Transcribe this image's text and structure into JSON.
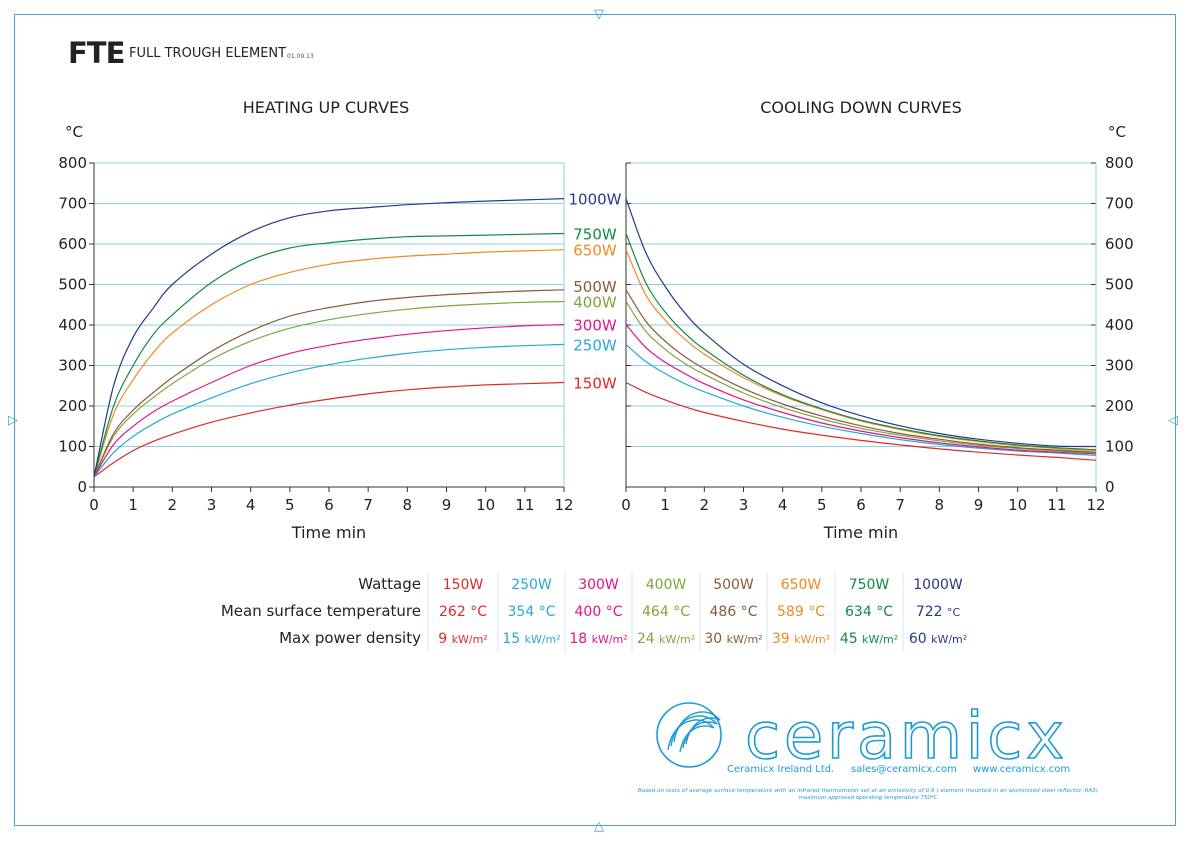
{
  "header": {
    "code": "FTE",
    "name": "FULL TROUGH ELEMENT",
    "date": "01.09.13"
  },
  "markers": {
    "top": "▽",
    "bottom": "△",
    "left": "▷",
    "right": "◁"
  },
  "colors": {
    "frame": "#4aa3d8",
    "grid": "#8fd0e6",
    "axis": "#333333"
  },
  "chart_data": [
    {
      "type": "line",
      "title": "HEATING UP CURVES",
      "xlabel": "Time min",
      "ylabel": "°C",
      "xlim": [
        0,
        12
      ],
      "ylim": [
        0,
        800
      ],
      "xticks": [
        "0",
        "1",
        "2",
        "3",
        "4",
        "5",
        "6",
        "7",
        "8",
        "9",
        "10",
        "11",
        "12"
      ],
      "yticks": [
        "0",
        "100",
        "200",
        "300",
        "400",
        "500",
        "600",
        "700",
        "800"
      ],
      "grid": true,
      "x": [
        0,
        0.5,
        1,
        1.5,
        2,
        3,
        4,
        5,
        6,
        7,
        8,
        9,
        10,
        11,
        12
      ],
      "series": [
        {
          "name": "150W",
          "color": "#e32828",
          "values": [
            25,
            60,
            90,
            112,
            130,
            160,
            183,
            202,
            217,
            230,
            240,
            247,
            252,
            255,
            258
          ]
        },
        {
          "name": "250W",
          "color": "#26a9d8",
          "values": [
            25,
            85,
            125,
            155,
            180,
            220,
            255,
            282,
            302,
            318,
            330,
            339,
            345,
            349,
            352
          ]
        },
        {
          "name": "300W",
          "color": "#e0148c",
          "values": [
            25,
            105,
            150,
            185,
            212,
            258,
            300,
            330,
            350,
            365,
            377,
            386,
            393,
            398,
            401
          ]
        },
        {
          "name": "400W",
          "color": "#7fa63a",
          "values": [
            25,
            125,
            180,
            220,
            255,
            315,
            360,
            392,
            413,
            428,
            439,
            447,
            452,
            456,
            458
          ]
        },
        {
          "name": "500W",
          "color": "#8a5a3a",
          "values": [
            25,
            132,
            190,
            232,
            270,
            335,
            385,
            422,
            443,
            458,
            468,
            475,
            480,
            484,
            487
          ]
        },
        {
          "name": "650W",
          "color": "#f08a20",
          "values": [
            25,
            180,
            265,
            330,
            380,
            450,
            500,
            530,
            550,
            562,
            570,
            575,
            580,
            583,
            586
          ]
        },
        {
          "name": "750W",
          "color": "#138a44",
          "values": [
            25,
            200,
            300,
            375,
            425,
            505,
            560,
            590,
            603,
            612,
            618,
            620,
            622,
            624,
            626
          ]
        },
        {
          "name": "1000W",
          "color": "#233a8c",
          "values": [
            25,
            250,
            370,
            440,
            500,
            575,
            630,
            665,
            682,
            690,
            697,
            702,
            706,
            709,
            712
          ]
        }
      ]
    },
    {
      "type": "line",
      "title": "COOLING DOWN CURVES",
      "xlabel": "Time min",
      "ylabel": "°C",
      "xlim": [
        0,
        12
      ],
      "ylim": [
        0,
        800
      ],
      "xticks": [
        "0",
        "1",
        "2",
        "3",
        "4",
        "5",
        "6",
        "7",
        "8",
        "9",
        "10",
        "11",
        "12"
      ],
      "yticks": [
        "0",
        "100",
        "200",
        "300",
        "400",
        "500",
        "600",
        "700",
        "800"
      ],
      "grid": true,
      "x": [
        0,
        0.5,
        1,
        1.5,
        2,
        3,
        4,
        5,
        6,
        7,
        8,
        9,
        10,
        11,
        12
      ],
      "series": [
        {
          "name": "150W",
          "color": "#e32828",
          "values": [
            258,
            234,
            215,
            198,
            184,
            162,
            143,
            128,
            115,
            104,
            94,
            86,
            79,
            73,
            66
          ]
        },
        {
          "name": "250W",
          "color": "#26a9d8",
          "values": [
            352,
            310,
            280,
            255,
            235,
            200,
            172,
            150,
            132,
            117,
            105,
            96,
            89,
            84,
            78
          ]
        },
        {
          "name": "300W",
          "color": "#e0148c",
          "values": [
            401,
            345,
            308,
            280,
            255,
            215,
            184,
            158,
            138,
            122,
            109,
            99,
            91,
            86,
            82
          ]
        },
        {
          "name": "400W",
          "color": "#7fa63a",
          "values": [
            458,
            385,
            340,
            305,
            278,
            232,
            196,
            168,
            145,
            128,
            114,
            103,
            95,
            89,
            84
          ]
        },
        {
          "name": "500W",
          "color": "#8a5a3a",
          "values": [
            487,
            410,
            360,
            322,
            292,
            243,
            205,
            175,
            151,
            132,
            118,
            106,
            97,
            91,
            86
          ]
        },
        {
          "name": "650W",
          "color": "#f08a20",
          "values": [
            586,
            475,
            412,
            365,
            328,
            270,
            225,
            191,
            163,
            142,
            125,
            112,
            102,
            95,
            90
          ]
        },
        {
          "name": "750W",
          "color": "#138a44",
          "values": [
            626,
            505,
            432,
            380,
            340,
            276,
            228,
            193,
            165,
            144,
            127,
            114,
            104,
            97,
            92
          ]
        },
        {
          "name": "1000W",
          "color": "#233a8c",
          "values": [
            712,
            580,
            495,
            430,
            380,
            303,
            250,
            208,
            176,
            151,
            132,
            118,
            108,
            101,
            100
          ]
        }
      ]
    }
  ],
  "legend_labels": [
    {
      "name": "1000W",
      "y": 712
    },
    {
      "name": "750W",
      "y": 626
    },
    {
      "name": "650W",
      "y": 586
    },
    {
      "name": "500W",
      "y": 496
    },
    {
      "name": "400W",
      "y": 458
    },
    {
      "name": "300W",
      "y": 401
    },
    {
      "name": "250W",
      "y": 352
    },
    {
      "name": "150W",
      "y": 258
    }
  ],
  "table": {
    "row_labels": [
      "Wattage",
      "Mean surface temperature",
      "Max power density"
    ],
    "columns": [
      {
        "color": "#e32828",
        "wattage": "150W",
        "temp": "262",
        "temp_unit": "°C",
        "density": "9",
        "density_unit": "kW/m²"
      },
      {
        "color": "#26a9d8",
        "wattage": "250W",
        "temp": "354",
        "temp_unit": "°C",
        "density": "15",
        "density_unit": "kW/m²"
      },
      {
        "color": "#e0148c",
        "wattage": "300W",
        "temp": "400",
        "temp_unit": "°C",
        "density": "18",
        "density_unit": "kW/m²"
      },
      {
        "color": "#7fa63a",
        "wattage": "400W",
        "temp": "464",
        "temp_unit": "°C",
        "density": "24",
        "density_unit": "kW/m²"
      },
      {
        "color": "#8a5a3a",
        "wattage": "500W",
        "temp": "486",
        "temp_unit": "°C",
        "density": "30",
        "density_unit": "kW/m²"
      },
      {
        "color": "#f08a20",
        "wattage": "650W",
        "temp": "589",
        "temp_unit": "°C",
        "density": "39",
        "density_unit": "kW/m²"
      },
      {
        "color": "#138a44",
        "wattage": "750W",
        "temp": "634",
        "temp_unit": "°C",
        "density": "45",
        "density_unit": "kW/m²"
      },
      {
        "color": "#233a8c",
        "wattage": "1000W",
        "temp": "722",
        "temp_unit": "°C",
        "density": "60",
        "density_unit": "kW/m²"
      }
    ]
  },
  "footer": {
    "brand": "ceramicx",
    "company": "Ceramicx Ireland Ltd.",
    "email": "sales@ceramicx.com",
    "website": "www.ceramicx.com",
    "note1": "Based on tests of average surface temperature with an infrared thermometer set at an emissivity of 0.9 ( element mounted in an aluminised steel reflector, RAS)",
    "note2": "maximum approved operating temperature 750ºC",
    "color": "#1e9bd7"
  }
}
